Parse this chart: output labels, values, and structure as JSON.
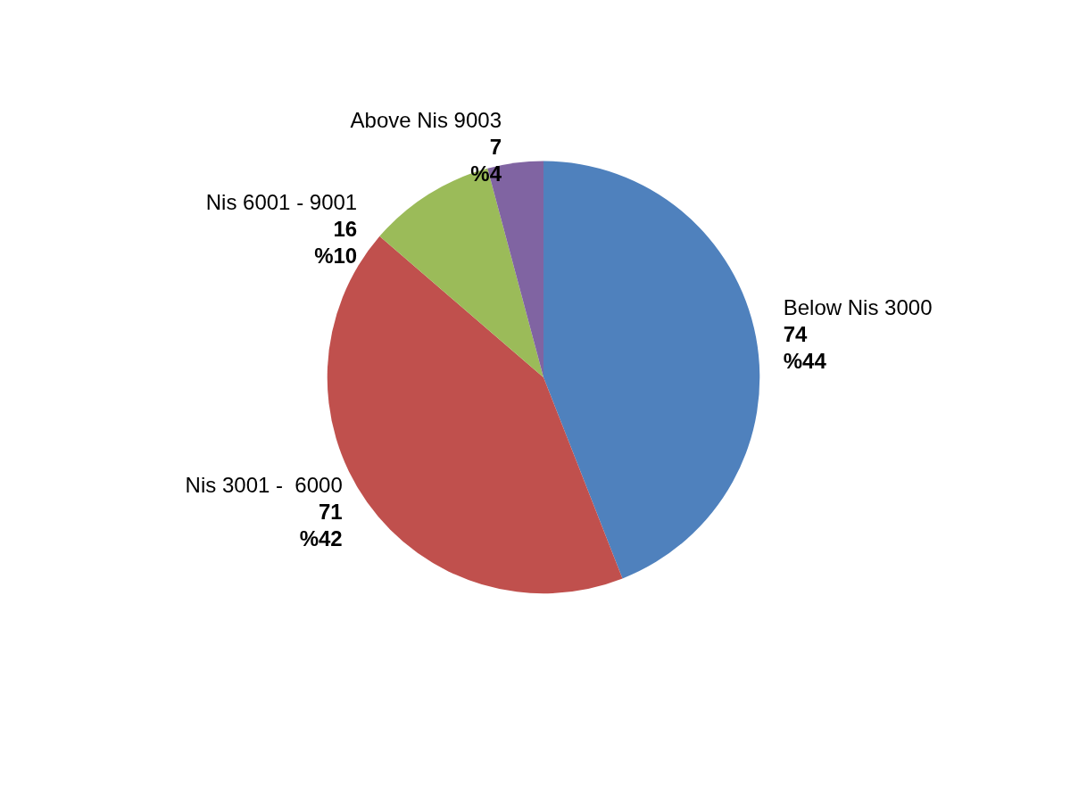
{
  "chart_data": {
    "type": "pie",
    "categories": [
      "Below Nis 3000",
      "Nis 3001 -  6000",
      "Nis 6001 - 9001",
      "Above Nis 9003"
    ],
    "values": [
      74,
      71,
      16,
      7
    ],
    "colors": [
      "#4f81bd",
      "#c0504d",
      "#9bbb59",
      "#8064a2"
    ],
    "value_labels": [
      "74\n%44",
      "71\n%42",
      "16\n%10",
      "7\n%4"
    ],
    "legend": false
  }
}
